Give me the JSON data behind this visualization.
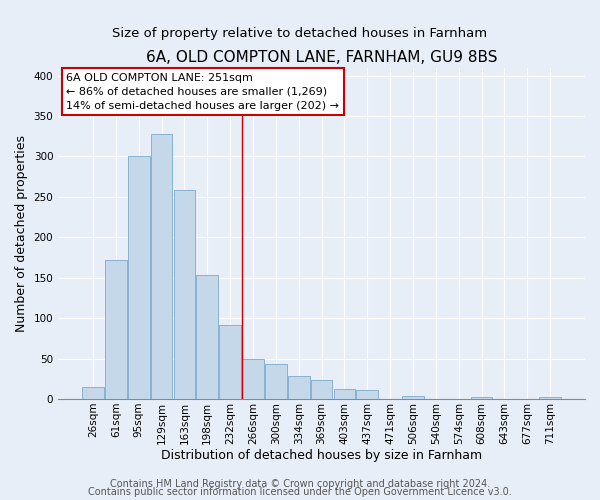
{
  "title": "6A, OLD COMPTON LANE, FARNHAM, GU9 8BS",
  "subtitle": "Size of property relative to detached houses in Farnham",
  "xlabel": "Distribution of detached houses by size in Farnham",
  "ylabel": "Number of detached properties",
  "bar_labels": [
    "26sqm",
    "61sqm",
    "95sqm",
    "129sqm",
    "163sqm",
    "198sqm",
    "232sqm",
    "266sqm",
    "300sqm",
    "334sqm",
    "369sqm",
    "403sqm",
    "437sqm",
    "471sqm",
    "506sqm",
    "540sqm",
    "574sqm",
    "608sqm",
    "643sqm",
    "677sqm",
    "711sqm"
  ],
  "bar_values": [
    15,
    172,
    300,
    328,
    258,
    153,
    92,
    50,
    43,
    29,
    23,
    13,
    11,
    0,
    4,
    0,
    0,
    2,
    0,
    0,
    2
  ],
  "bar_color": "#c5d8ea",
  "bar_edge_color": "#7aabcc",
  "annotation_title": "6A OLD COMPTON LANE: 251sqm",
  "annotation_line1": "← 86% of detached houses are smaller (1,269)",
  "annotation_line2": "14% of semi-detached houses are larger (202) →",
  "annotation_box_facecolor": "#ffffff",
  "annotation_box_edgecolor": "#cc0000",
  "vline_x_index": 6.5,
  "bg_color": "#e8eef8",
  "grid_color": "#ffffff",
  "footer1": "Contains HM Land Registry data © Crown copyright and database right 2024.",
  "footer2": "Contains public sector information licensed under the Open Government Licence v3.0.",
  "ylim": [
    0,
    410
  ],
  "yticks": [
    0,
    50,
    100,
    150,
    200,
    250,
    300,
    350,
    400
  ],
  "title_fontsize": 11,
  "subtitle_fontsize": 9.5,
  "axis_label_fontsize": 9,
  "tick_fontsize": 7.5,
  "annotation_fontsize": 8,
  "footer_fontsize": 7
}
